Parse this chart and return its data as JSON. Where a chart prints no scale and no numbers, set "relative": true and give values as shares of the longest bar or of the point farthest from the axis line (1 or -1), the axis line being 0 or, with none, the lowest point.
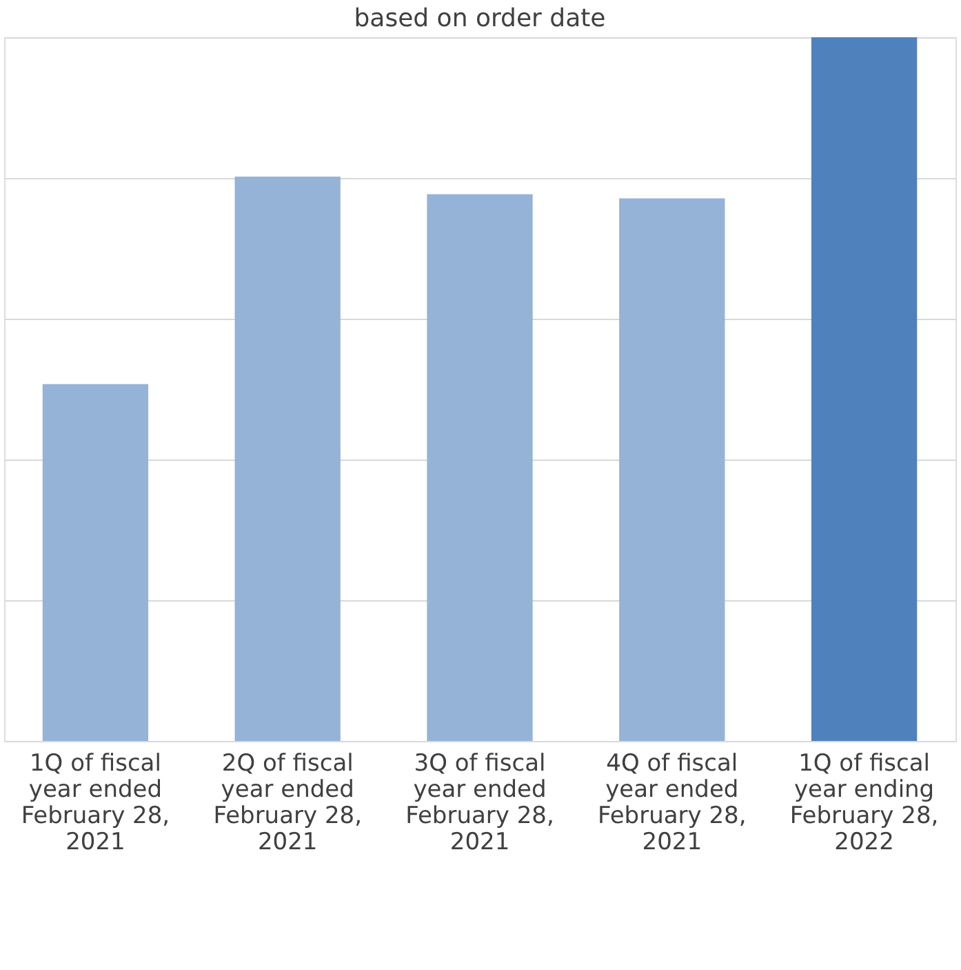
{
  "chart_data": {
    "type": "bar",
    "title": "based on order date",
    "categories": [
      "1Q of fiscal year ended February 28, 2021",
      "2Q of fiscal year ended February 28, 2021",
      "3Q of fiscal year ended February 28, 2021",
      "4Q of fiscal year ended February 28, 2021",
      "1Q of fiscal year ending February 28, 2022"
    ],
    "values": [
      0.507,
      0.802,
      0.777,
      0.771,
      1
    ],
    "colors": [
      "#95b3d7",
      "#95b3d7",
      "#95b3d7",
      "#95b3d7",
      "#4f81bd"
    ],
    "relative": true,
    "grid": "y"
  }
}
